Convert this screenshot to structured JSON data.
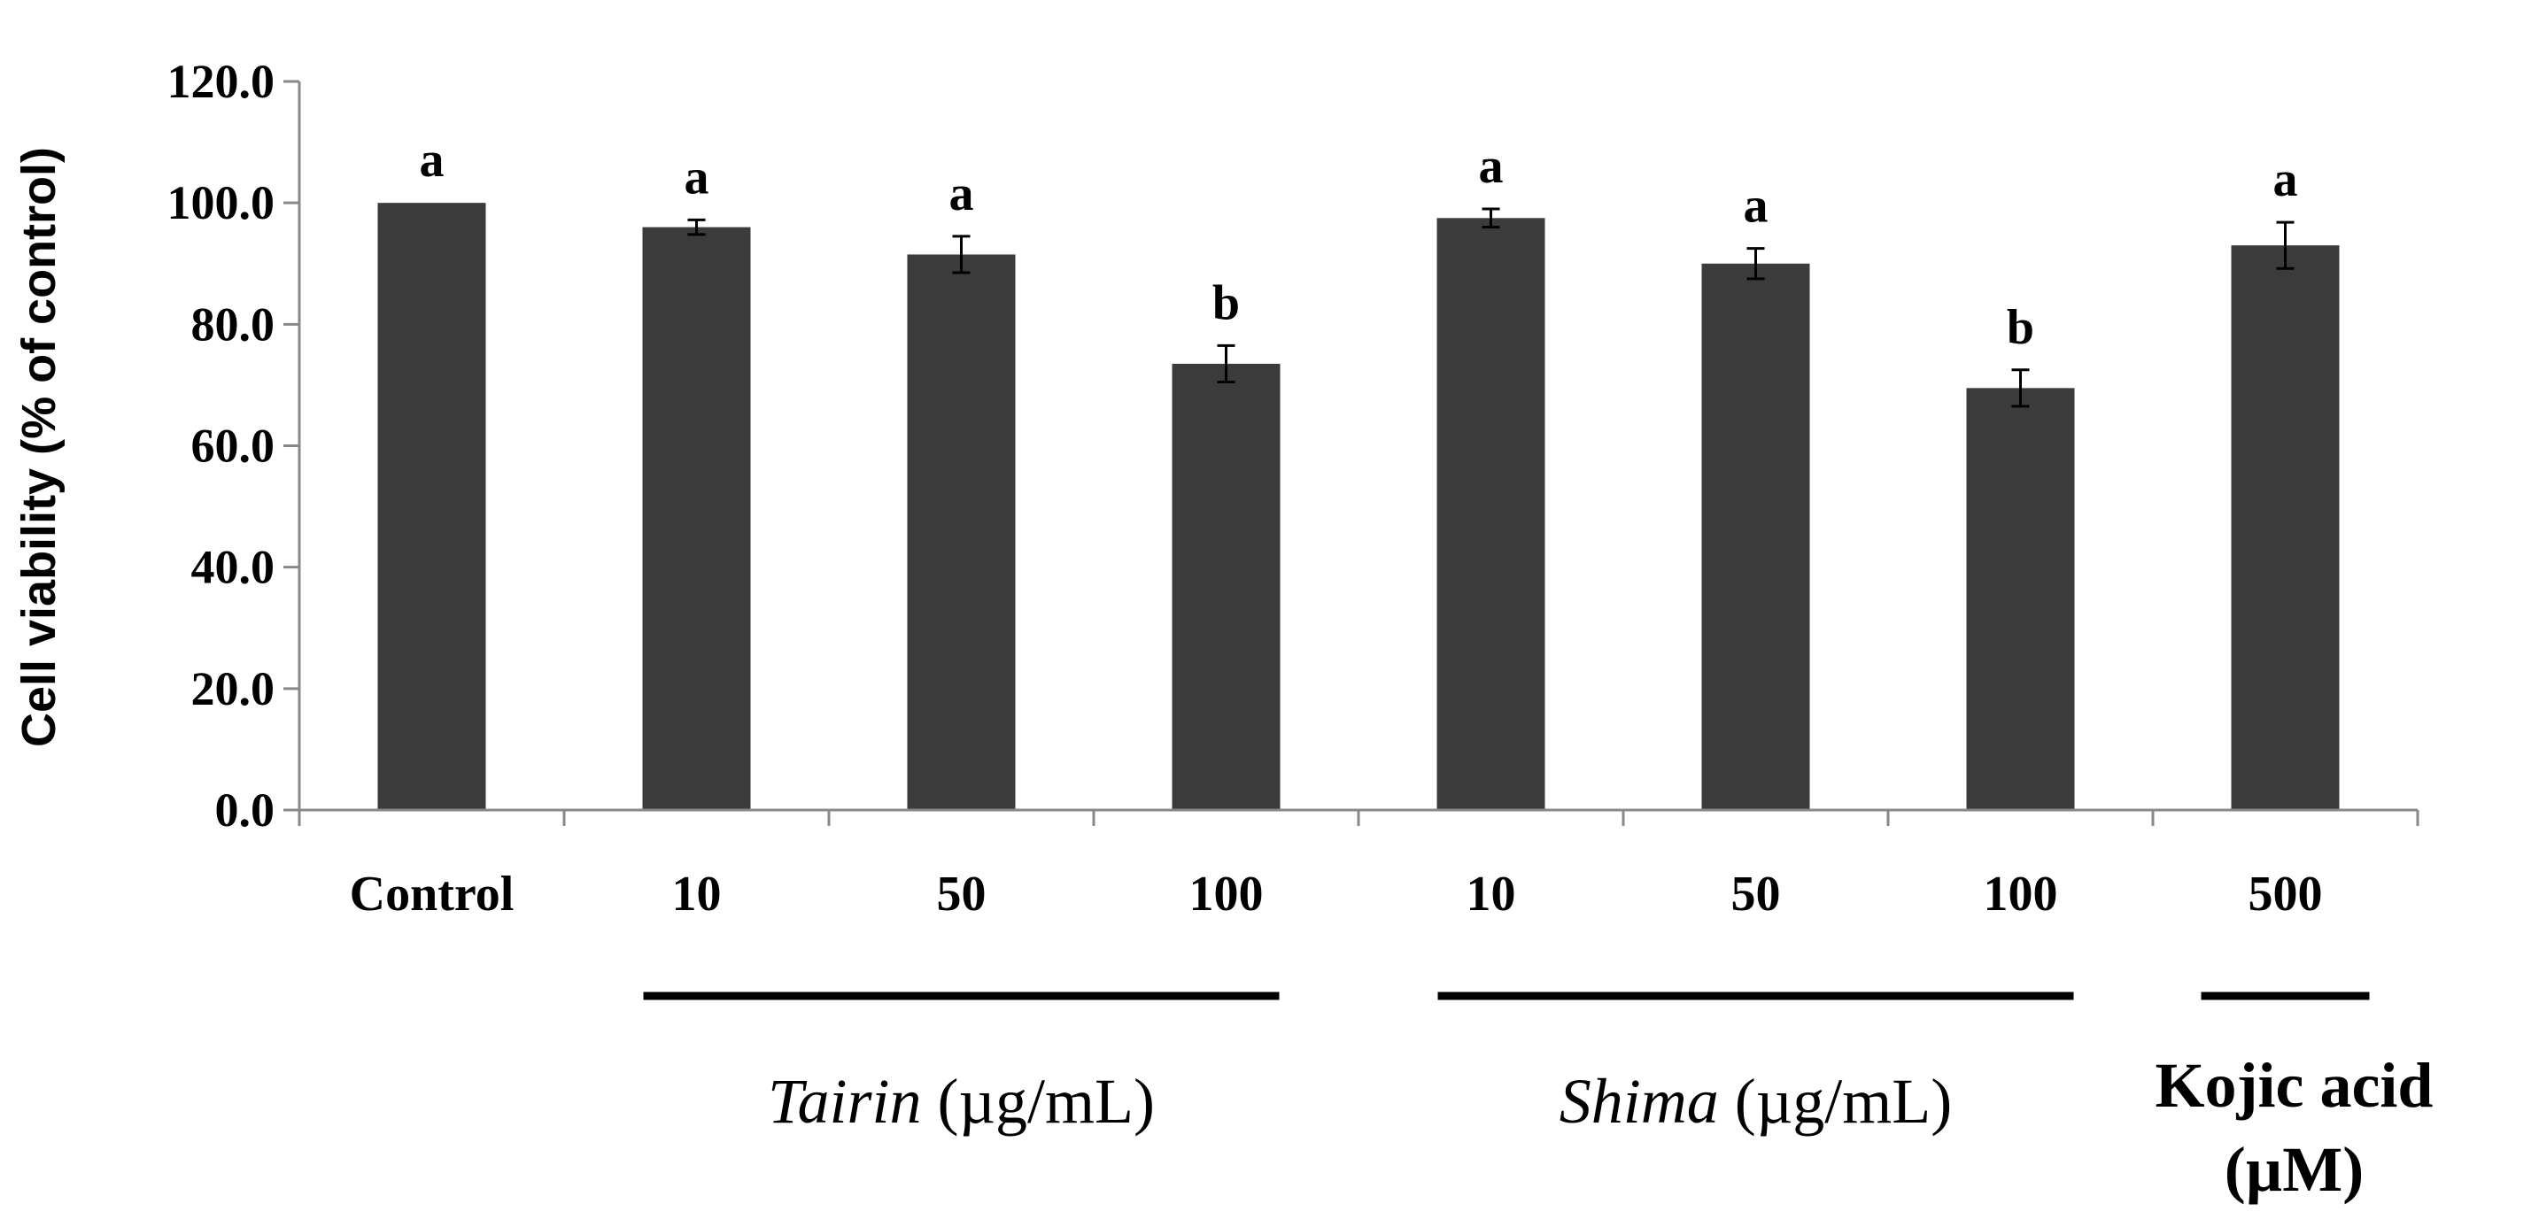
{
  "chart_data": {
    "type": "bar",
    "title": "",
    "xlabel": "",
    "ylabel": "Cell viability  (% of control)",
    "ylim": [
      0,
      120
    ],
    "yticks": [
      "0.0",
      "20.0",
      "40.0",
      "60.0",
      "80.0",
      "100.0",
      "120.0"
    ],
    "grid": false,
    "bar_color": "#3b3b3b",
    "categories": [
      "Control",
      "10",
      "50",
      "100",
      "10",
      "50",
      "100",
      "500"
    ],
    "values": [
      100.0,
      96.0,
      91.5,
      73.5,
      97.5,
      90.0,
      69.5,
      93.0
    ],
    "errors": [
      0.0,
      1.2,
      3.0,
      3.0,
      1.5,
      2.5,
      3.0,
      3.8
    ],
    "significance": [
      "a",
      "a",
      "a",
      "b",
      "a",
      "a",
      "b",
      "a"
    ],
    "groups": [
      {
        "italic": "Tairin",
        "rest": " (µg/mL)",
        "start": 1,
        "end": 3
      },
      {
        "italic": "Shima",
        "rest": " (µg/mL)",
        "start": 4,
        "end": 6
      },
      {
        "line1": "Kojic acid",
        "line2": "(µM)",
        "start": 7,
        "end": 7
      }
    ]
  }
}
